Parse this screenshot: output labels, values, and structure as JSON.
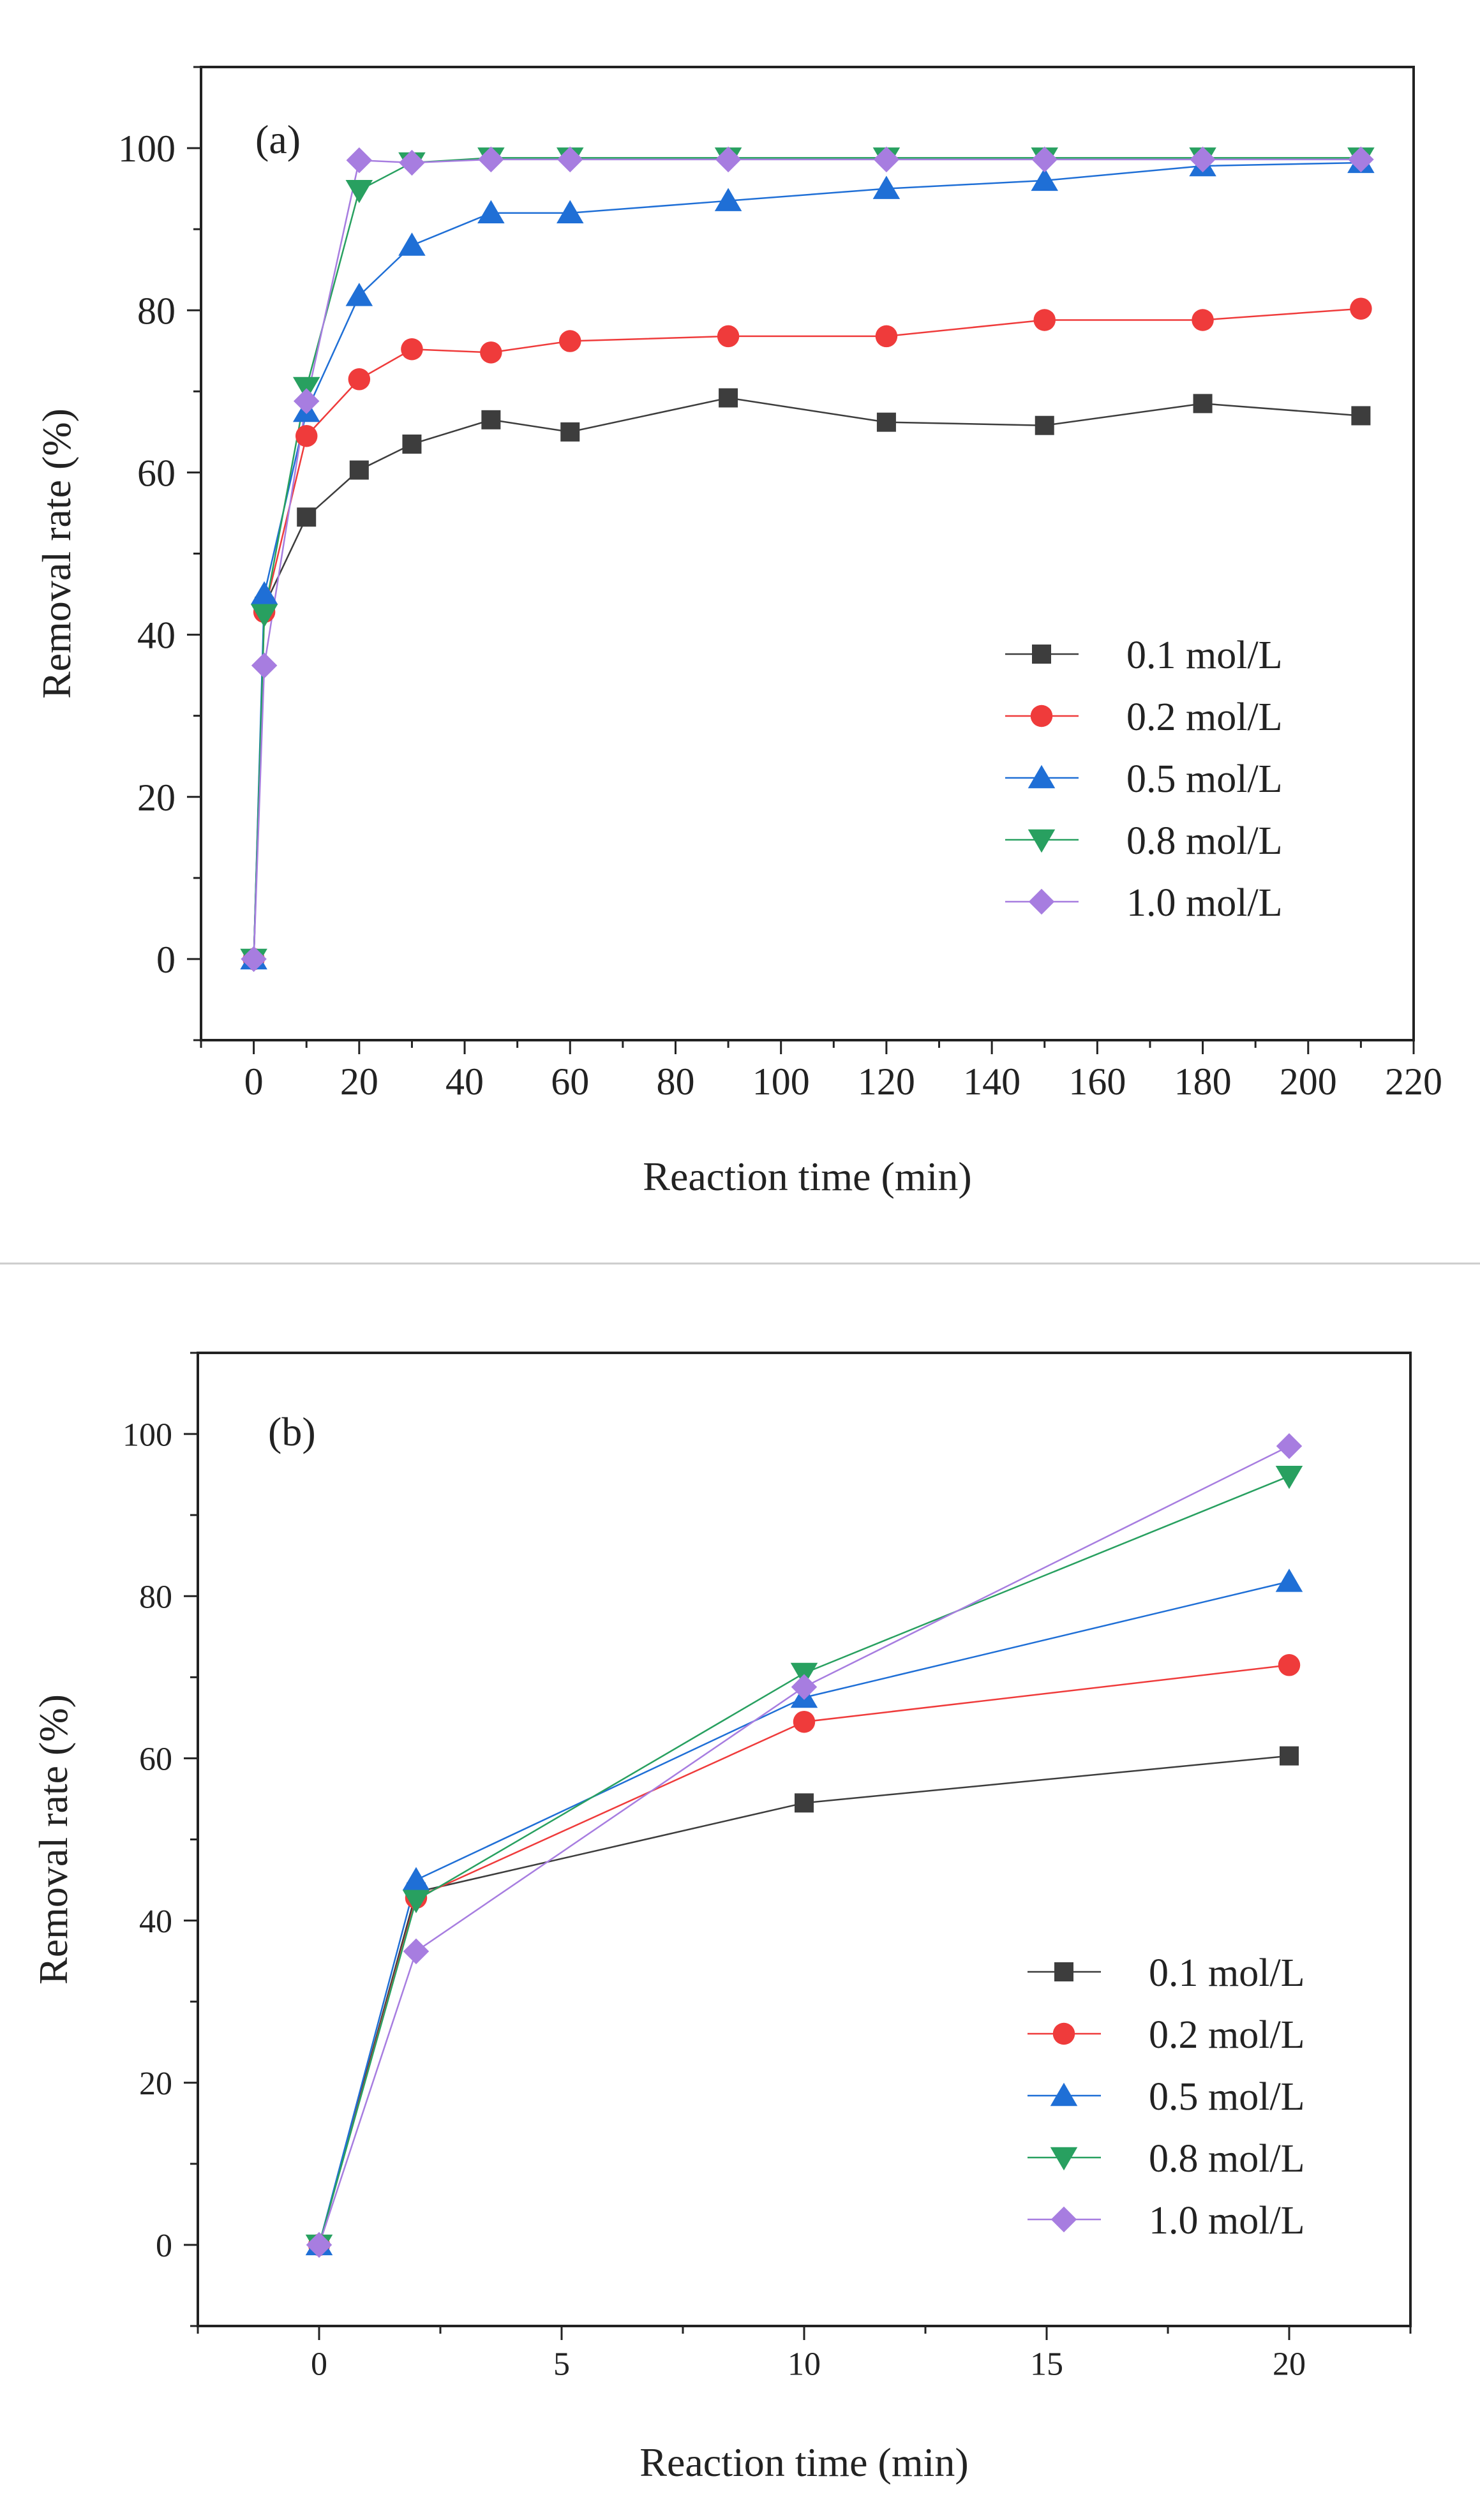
{
  "colors": {
    "0.1 mol/L": "#3d3d3d",
    "0.2 mol/L": "#ef3b3b",
    "0.5 mol/L": "#1f6fd6",
    "0.8 mol/L": "#28a060",
    "1.0 mol/L": "#a77de0",
    "axis": "#222222",
    "divider": "#cccccc"
  },
  "chart_data": [
    {
      "type": "line",
      "panel_label": "(a)",
      "xlabel": "Reaction time (min)",
      "ylabel": "Removal rate (%)",
      "xlim": [
        -10,
        220
      ],
      "ylim": [
        -10,
        110
      ],
      "xticks": [
        0,
        20,
        40,
        60,
        80,
        100,
        120,
        140,
        160,
        180,
        200,
        220
      ],
      "xtick_labels": [
        "0",
        "20",
        "40",
        "60",
        "80",
        "100",
        "120",
        "140",
        "160",
        "180",
        "200",
        "220"
      ],
      "yticks": [
        0,
        20,
        40,
        60,
        80,
        100
      ],
      "ytick_labels": [
        "0",
        "20",
        "40",
        "60",
        "80",
        "100"
      ],
      "legend_position": "lower-right",
      "x": [
        0,
        2,
        10,
        20,
        30,
        45,
        60,
        90,
        120,
        150,
        180,
        210
      ],
      "series": [
        {
          "name": "0.1 mol/L",
          "marker": "square",
          "values": [
            0,
            43.5,
            54.5,
            60.3,
            63.5,
            66.5,
            65,
            69.2,
            66.2,
            65.8,
            68.5,
            67
          ]
        },
        {
          "name": "0.2 mol/L",
          "marker": "circle",
          "values": [
            0,
            42.8,
            64.5,
            71.5,
            75.2,
            74.8,
            76.2,
            76.8,
            76.8,
            78.8,
            78.8,
            80.2
          ]
        },
        {
          "name": "0.5 mol/L",
          "marker": "triangle-up",
          "values": [
            0,
            45,
            67.5,
            81.8,
            88,
            92,
            92,
            93.5,
            95,
            96,
            97.8,
            98.2
          ]
        },
        {
          "name": "0.8 mol/L",
          "marker": "triangle-down",
          "values": [
            0,
            42.5,
            70.5,
            94.8,
            98.2,
            98.8,
            98.8,
            98.8,
            98.8,
            98.8,
            98.8,
            98.8
          ]
        },
        {
          "name": "1.0 mol/L",
          "marker": "diamond",
          "values": [
            0,
            36.2,
            68.8,
            98.5,
            98.2,
            98.6,
            98.6,
            98.6,
            98.6,
            98.6,
            98.6,
            98.6
          ]
        }
      ]
    },
    {
      "type": "line",
      "panel_label": "(b)",
      "xlabel": "Reaction time (min)",
      "ylabel": "Removal rate (%)",
      "xlim": [
        -2.5,
        22.5
      ],
      "ylim": [
        -10,
        110
      ],
      "xticks": [
        0,
        5,
        10,
        15,
        20
      ],
      "xtick_labels": [
        "0",
        "5",
        "10",
        "15",
        "20"
      ],
      "yticks": [
        0,
        20,
        40,
        60,
        80,
        100
      ],
      "ytick_labels": [
        "0",
        "20",
        "40",
        "60",
        "80",
        "100"
      ],
      "legend_position": "lower-right",
      "x": [
        0,
        2,
        10,
        20
      ],
      "series": [
        {
          "name": "0.1 mol/L",
          "marker": "square",
          "values": [
            0,
            43.5,
            54.5,
            60.3
          ]
        },
        {
          "name": "0.2 mol/L",
          "marker": "circle",
          "values": [
            0,
            42.8,
            64.5,
            71.5
          ]
        },
        {
          "name": "0.5 mol/L",
          "marker": "triangle-up",
          "values": [
            0,
            45,
            67.5,
            81.8
          ]
        },
        {
          "name": "0.8 mol/L",
          "marker": "triangle-down",
          "values": [
            0,
            42.5,
            70.5,
            94.8
          ]
        },
        {
          "name": "1.0 mol/L",
          "marker": "diamond",
          "values": [
            0,
            36.2,
            68.8,
            98.5
          ]
        }
      ]
    }
  ]
}
